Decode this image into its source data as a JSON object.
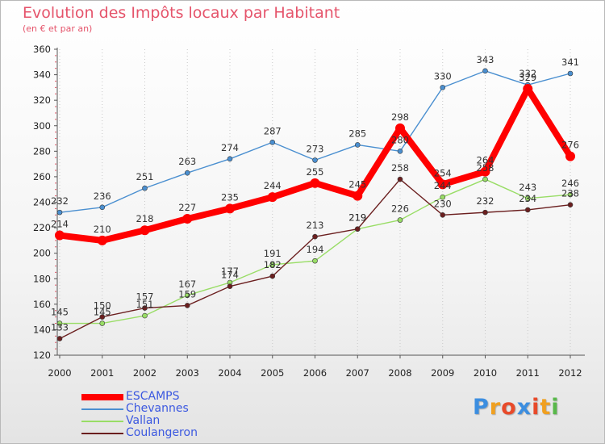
{
  "header": {
    "title": "Evolution des Impôts locaux par Habitant",
    "subtitle": "(en € et par an)"
  },
  "chart_data": {
    "type": "line",
    "title": "Evolution des Impôts locaux par Habitant",
    "subtitle": "(en € et par an)",
    "xlabel": "",
    "ylabel": "",
    "ylim": [
      120,
      360
    ],
    "y_ticks": [
      120,
      140,
      160,
      180,
      200,
      220,
      240,
      260,
      280,
      300,
      320,
      340,
      360
    ],
    "categories": [
      "2000",
      "2001",
      "2002",
      "2003",
      "2004",
      "2005",
      "2006",
      "2007",
      "2008",
      "2009",
      "2010",
      "2011",
      "2012"
    ],
    "grid": "vertical dotted",
    "legend_position": "bottom-left",
    "series": [
      {
        "name": "ESCAMPS",
        "values": [
          214,
          210,
          218,
          227,
          235,
          244,
          255,
          245,
          298,
          254,
          264,
          329,
          276
        ],
        "color": "#ff0000"
      },
      {
        "name": "Chevannes",
        "values": [
          232,
          236,
          251,
          263,
          274,
          287,
          273,
          285,
          280,
          330,
          343,
          332,
          341
        ],
        "color": "#4a8fd0"
      },
      {
        "name": "Vallan",
        "values": [
          145,
          145,
          151,
          167,
          177,
          191,
          194,
          219,
          226,
          244,
          258,
          243,
          246
        ],
        "color": "#99dd66"
      },
      {
        "name": "Coulangeron",
        "values": [
          133,
          150,
          157,
          159,
          174,
          182,
          213,
          219,
          258,
          230,
          232,
          234,
          238
        ],
        "color": "#6b1f1f"
      }
    ]
  },
  "logo": {
    "text": "Proxiti",
    "letters": [
      "P",
      "r",
      "o",
      "x",
      "i",
      "t",
      "i"
    ],
    "colors": [
      "#3c8ee0",
      "#f0a020",
      "#e84a2a",
      "#3c8ee0",
      "#e84a2a",
      "#f0a020",
      "#58b84a"
    ]
  }
}
